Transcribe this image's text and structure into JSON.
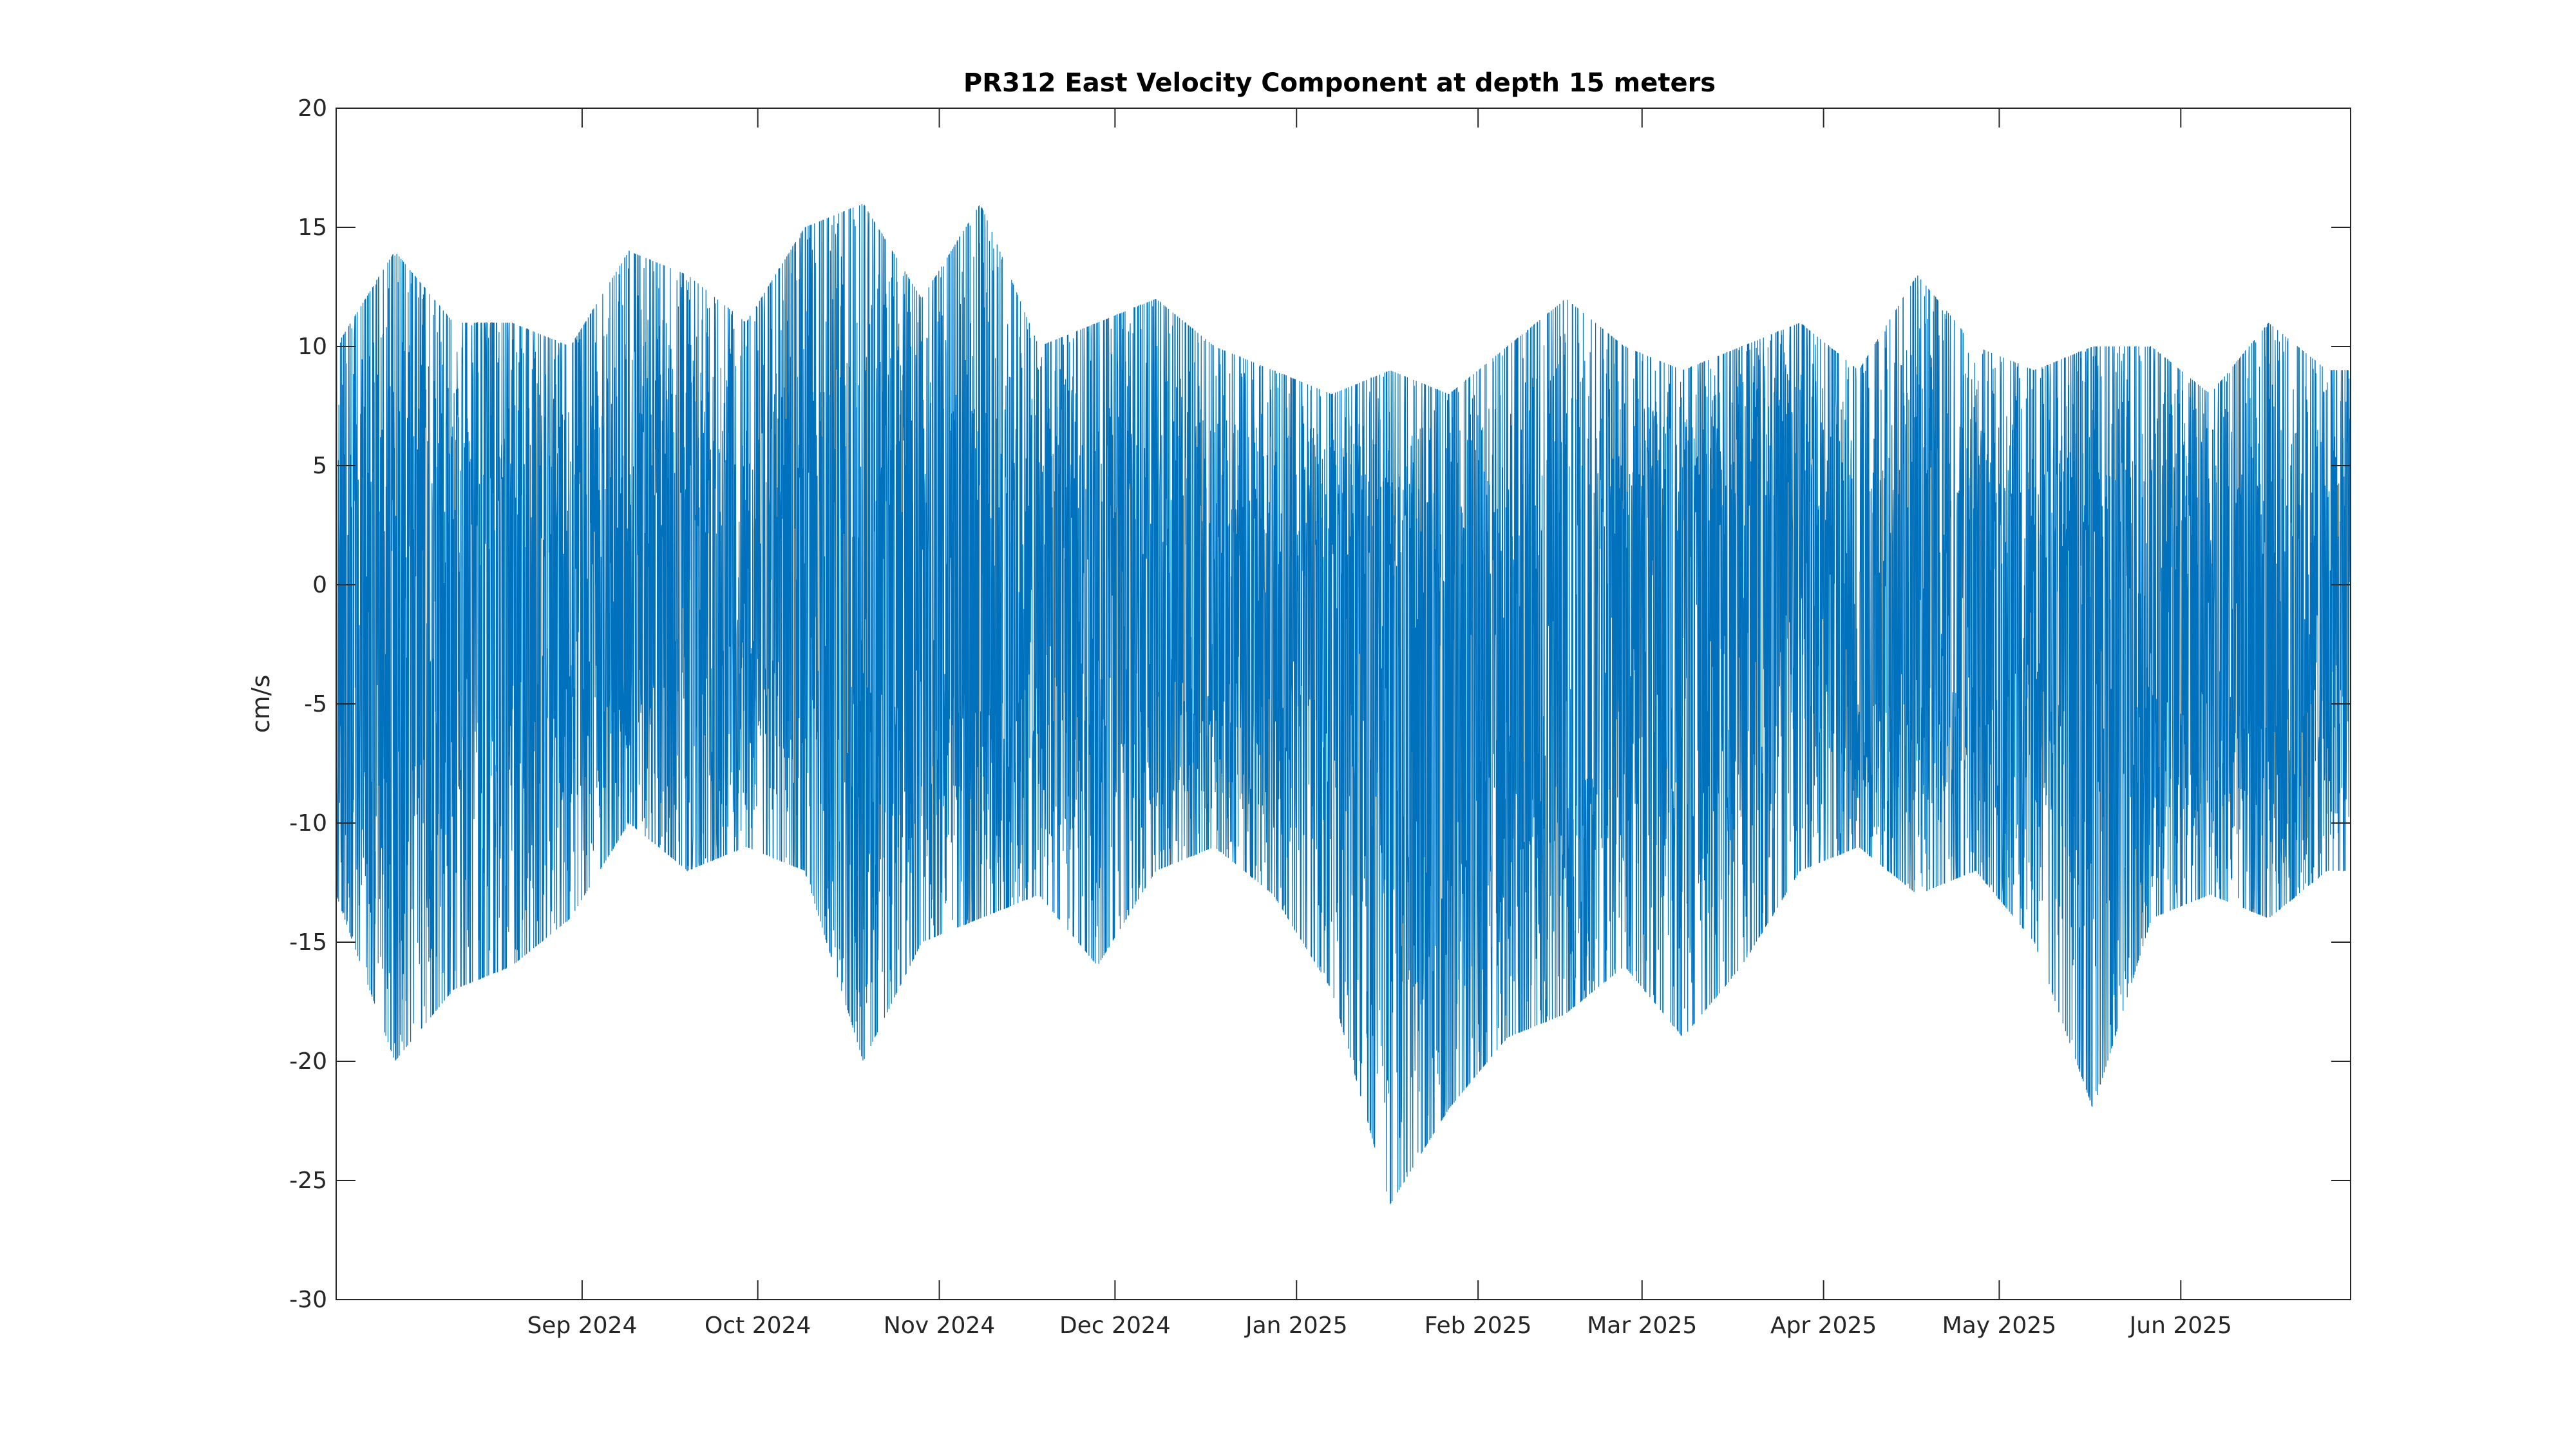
{
  "chart_data": {
    "type": "line",
    "title": "PR312 East Velocity Component at depth 15 meters",
    "xlabel": "",
    "ylabel": "cm/s",
    "ylim": [
      -30,
      20
    ],
    "xlim": [
      "2024-07-21",
      "2025-06-30"
    ],
    "yticks": [
      {
        "value": 20,
        "label": "20"
      },
      {
        "value": 15,
        "label": "15"
      },
      {
        "value": 10,
        "label": "10"
      },
      {
        "value": 5,
        "label": "5"
      },
      {
        "value": 0,
        "label": "0"
      },
      {
        "value": -5,
        "label": "-5"
      },
      {
        "value": -10,
        "label": "-10"
      },
      {
        "value": -15,
        "label": "-15"
      },
      {
        "value": -20,
        "label": "-20"
      },
      {
        "value": -25,
        "label": "-25"
      },
      {
        "value": -30,
        "label": "-30"
      }
    ],
    "xticks": [
      {
        "date": "2024-09-01",
        "label": "Sep 2024"
      },
      {
        "date": "2024-10-01",
        "label": "Oct 2024"
      },
      {
        "date": "2024-11-01",
        "label": "Nov 2024"
      },
      {
        "date": "2024-12-01",
        "label": "Dec 2024"
      },
      {
        "date": "2025-01-01",
        "label": "Jan 2025"
      },
      {
        "date": "2025-02-01",
        "label": "Feb 2025"
      },
      {
        "date": "2025-03-01",
        "label": "Mar 2025"
      },
      {
        "date": "2025-04-01",
        "label": "Apr 2025"
      },
      {
        "date": "2025-05-01",
        "label": "May 2025"
      },
      {
        "date": "2025-06-01",
        "label": "Jun 2025"
      }
    ],
    "grid": false,
    "series_color": "#0072BD",
    "series": [
      {
        "x": [
          "2024-07-21",
          "2024-07-31",
          "2024-08-10",
          "2024-08-20",
          "2024-08-30",
          "2024-09-09",
          "2024-09-19",
          "2024-09-29",
          "2024-10-09",
          "2024-10-19",
          "2024-10-29",
          "2024-11-08",
          "2024-11-18",
          "2024-11-28",
          "2024-12-08",
          "2024-12-18",
          "2024-12-28",
          "2025-01-07",
          "2025-01-17",
          "2025-01-27",
          "2025-02-06",
          "2025-02-16",
          "2025-02-26",
          "2025-03-08",
          "2025-03-18",
          "2025-03-28",
          "2025-04-07",
          "2025-04-17",
          "2025-04-27",
          "2025-05-07",
          "2025-05-17",
          "2025-05-27",
          "2025-06-06",
          "2025-06-16",
          "2025-06-26"
        ],
        "y": [
          -3,
          -4,
          -1,
          0,
          -1,
          -2,
          1,
          0,
          -1,
          0,
          0,
          -2,
          -1,
          0,
          -2,
          -1,
          -2,
          0,
          -1,
          -6,
          -5,
          -7,
          -2,
          0,
          1,
          2,
          -3,
          -2,
          -1,
          0,
          -2,
          -2,
          -2,
          -3,
          -2
        ],
        "min": [
          -13,
          -20,
          -17,
          -16,
          -14,
          -10,
          -12,
          -11,
          -12,
          -20,
          -15,
          -14,
          -13,
          -16,
          -12,
          -11,
          -13,
          -17,
          -26,
          -22,
          -19,
          -18,
          -16,
          -19,
          -16,
          -12,
          -11,
          -13,
          -12,
          -15,
          -22,
          -14,
          -13,
          -14,
          -12
        ],
        "max": [
          10,
          14,
          11,
          11,
          10,
          14,
          13,
          11,
          15,
          16,
          12,
          16,
          10,
          11,
          12,
          10,
          9,
          8,
          9,
          8,
          10,
          12,
          10,
          9,
          10,
          11,
          9,
          13,
          10,
          9,
          10,
          10,
          8,
          11,
          9
        ]
      }
    ]
  }
}
